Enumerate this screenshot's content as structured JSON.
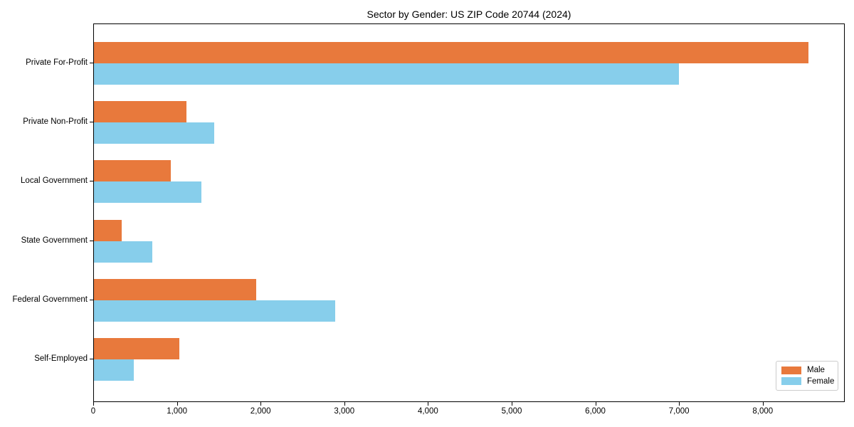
{
  "chart_data": {
    "type": "bar",
    "orientation": "horizontal",
    "title": "Sector by Gender: US ZIP Code 20744 (2024)",
    "categories": [
      "Private For-Profit",
      "Private Non-Profit",
      "Local Government",
      "State Government",
      "Federal Government",
      "Self-Employed"
    ],
    "series": [
      {
        "name": "Male",
        "color": "#E8793C",
        "values": [
          8550,
          1110,
          920,
          330,
          1940,
          1020
        ]
      },
      {
        "name": "Female",
        "color": "#87CEEB",
        "values": [
          7000,
          1440,
          1290,
          700,
          2890,
          480
        ]
      }
    ],
    "xlabel": "",
    "ylabel": "",
    "xlim": [
      0,
      8980
    ],
    "xticks": [
      0,
      1000,
      2000,
      3000,
      4000,
      5000,
      6000,
      7000,
      8000
    ],
    "xtick_labels": [
      "0",
      "1,000",
      "2,000",
      "3,000",
      "4,000",
      "5,000",
      "6,000",
      "7,000",
      "8,000"
    ],
    "legend_position": "lower right",
    "grid": false
  }
}
